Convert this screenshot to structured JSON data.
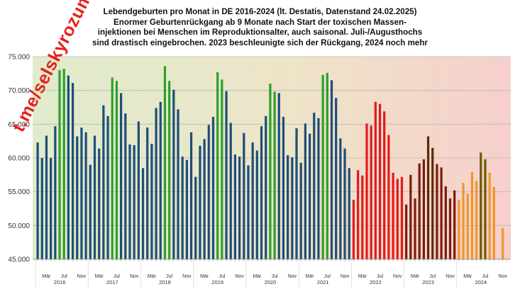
{
  "title_lines": [
    "Lebendgeburten pro Monat in DE 2016-2024 (lt. Destatis, Datenstand 24.02.2025)",
    "Enormer Geburtenrückgang ab 9 Monate nach Start der toxischen Massen-",
    "injektionen bei Menschen im Reproduktionsalter, auch saisonal. Juli-/Augusthochs",
    "sind drastisch eingebrochen. 2023 beschleunigte sich der Rückgang, 2024 noch mehr"
  ],
  "watermark": "t.me/selskyrozum",
  "colors": {
    "normal": "#1f4e79",
    "summer_pre": "#2ca02c",
    "y2022": "#e31a1c",
    "y2023": "#7b1c0f",
    "y2023_summer": "#5c2a00",
    "y2024": "#f0962a",
    "y2024_summer": "#6b5a00",
    "bg_left": "#dfeccc",
    "bg_right": "#f6cfcc",
    "grid": "#b8b8b8"
  },
  "chart_data": {
    "type": "bar",
    "title": "Lebendgeburten pro Monat in DE 2016-2024 (lt. Destatis, Datenstand 24.02.2025)",
    "xlabel": "",
    "ylabel": "",
    "ylim": [
      45000,
      75000
    ],
    "yticks": [
      45000,
      50000,
      55000,
      60000,
      65000,
      70000,
      75000
    ],
    "ytick_labels": [
      "45.000",
      "50.000",
      "55.000",
      "60.000",
      "65.000",
      "70.000",
      "75.000"
    ],
    "month_tick_labels": [
      "Mär",
      "Jul",
      "Nov"
    ],
    "year_labels": [
      "2016",
      "2017",
      "2018",
      "2019",
      "2020",
      "2021",
      "2022",
      "2023",
      "2024"
    ],
    "grid": true,
    "years": [
      {
        "year": "2016",
        "values": [
          62300,
          60000,
          63300,
          60000,
          64700,
          73000,
          73200,
          72200,
          71100,
          63200,
          64500,
          63800
        ]
      },
      {
        "year": "2017",
        "values": [
          59000,
          63300,
          61400,
          67800,
          66200,
          71900,
          71400,
          69600,
          66600,
          62000,
          61900,
          65400
        ]
      },
      {
        "year": "2018",
        "values": [
          58500,
          64500,
          62100,
          67400,
          68300,
          73600,
          71400,
          70100,
          67200,
          60200,
          59700,
          63800
        ]
      },
      {
        "year": "2019",
        "values": [
          57200,
          61800,
          62800,
          64900,
          66100,
          72700,
          71600,
          69900,
          65200,
          60500,
          60200,
          63700
        ]
      },
      {
        "year": "2020",
        "values": [
          58900,
          62300,
          61100,
          64700,
          66200,
          71000,
          69800,
          69600,
          66100,
          60400,
          60100,
          64400
        ]
      },
      {
        "year": "2021",
        "values": [
          59300,
          65100,
          63600,
          66700,
          65900,
          72300,
          72600,
          71500,
          68900,
          62900,
          61400,
          58500
        ]
      },
      {
        "year": "2022",
        "values": [
          53800,
          58200,
          57400,
          65100,
          64800,
          68300,
          68000,
          66900,
          63400,
          57800,
          56900,
          57200
        ]
      },
      {
        "year": "2023",
        "values": [
          53100,
          57500,
          54000,
          59200,
          59800,
          63200,
          61500,
          59100,
          58600,
          55800,
          54000,
          55200
        ]
      },
      {
        "year": "2024",
        "values": [
          53800,
          56300,
          54700,
          57900,
          56600,
          60800,
          59800,
          57800,
          55700,
          null,
          49600,
          null
        ]
      }
    ]
  }
}
